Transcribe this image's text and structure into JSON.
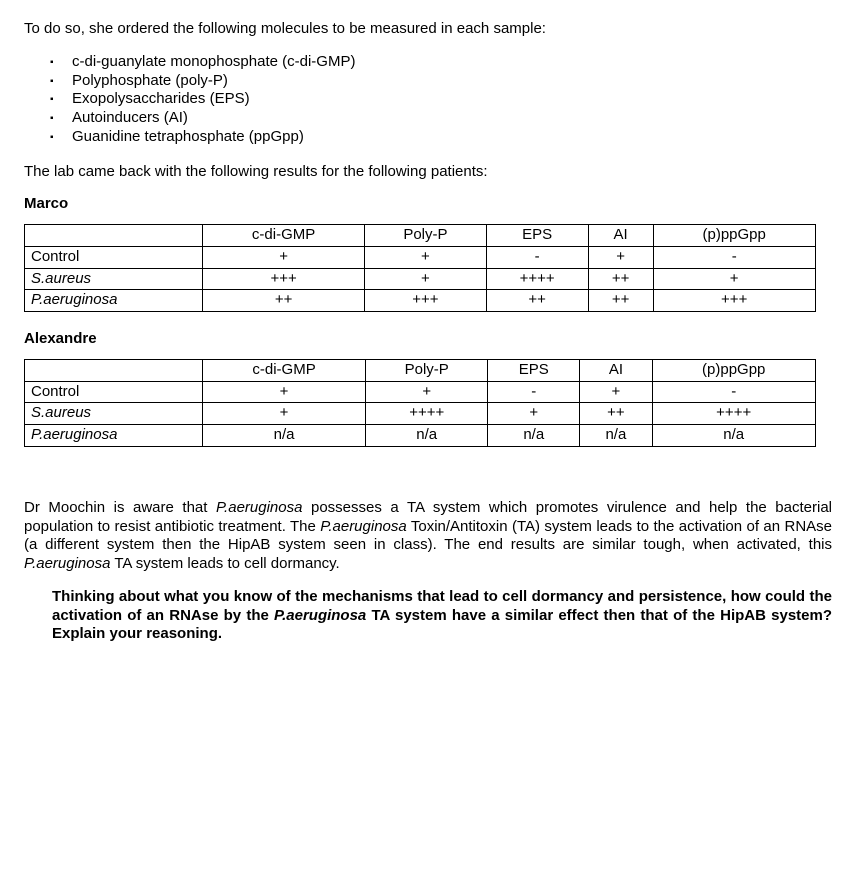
{
  "intro": "To do so, she ordered the following molecules to be measured in each sample:",
  "molecules": [
    "c-di-guanylate monophosphate (c-di-GMP)",
    "Polyphosphate (poly-P)",
    "Exopolysaccharides (EPS)",
    "Autoinducers (AI)",
    "Guanidine tetraphosphate (ppGpp)"
  ],
  "results_intro": "The lab came back with the following results for the following patients:",
  "columns": [
    "c-di-GMP",
    "Poly-P",
    "EPS",
    "AI",
    "(p)ppGpp"
  ],
  "patients": {
    "marco": {
      "name": "Marco",
      "rows": [
        {
          "label": "Control",
          "italic": false,
          "v": [
            "+",
            "+",
            "-",
            "+",
            "-"
          ]
        },
        {
          "label": "S.aureus",
          "italic": true,
          "v": [
            "+++",
            "+",
            "++++",
            "++",
            "+"
          ]
        },
        {
          "label": "P.aeruginosa",
          "italic": true,
          "v": [
            "++",
            "+++",
            "++",
            "++",
            "+++"
          ]
        }
      ]
    },
    "alexandre": {
      "name": "Alexandre",
      "rows": [
        {
          "label": "Control",
          "italic": false,
          "v": [
            "+",
            "+",
            "-",
            "+",
            "-"
          ]
        },
        {
          "label": "S.aureus",
          "italic": true,
          "v": [
            "+",
            "++++",
            "+",
            "++",
            "++++"
          ]
        },
        {
          "label": "P.aeruginosa",
          "italic": true,
          "v": [
            "n/a",
            "n/a",
            "n/a",
            "n/a",
            "n/a"
          ]
        }
      ]
    }
  },
  "explain": {
    "pre1": "Dr Moochin is aware that ",
    "sp1": "P.aeruginosa",
    "mid1": " possesses a TA system which promotes virulence and help the bacterial population to resist antibiotic treatment. The ",
    "sp2": "P.aeruginosa",
    "mid2": " Toxin/Antitoxin (TA) system leads to the activation of an RNAse (a different system then the HipAB system seen in class). The end results are similar tough, when activated, this ",
    "sp3": "P.aeruginosa",
    "post": " TA system leads to cell dormancy."
  },
  "question": {
    "pre": "Thinking about what you know of the mechanisms that lead to cell dormancy and persistence, how could the activation of an RNAse by the ",
    "sp": "P.aeruginosa",
    "post": " TA system have a similar effect then that of the HipAB system? Explain your reasoning."
  }
}
